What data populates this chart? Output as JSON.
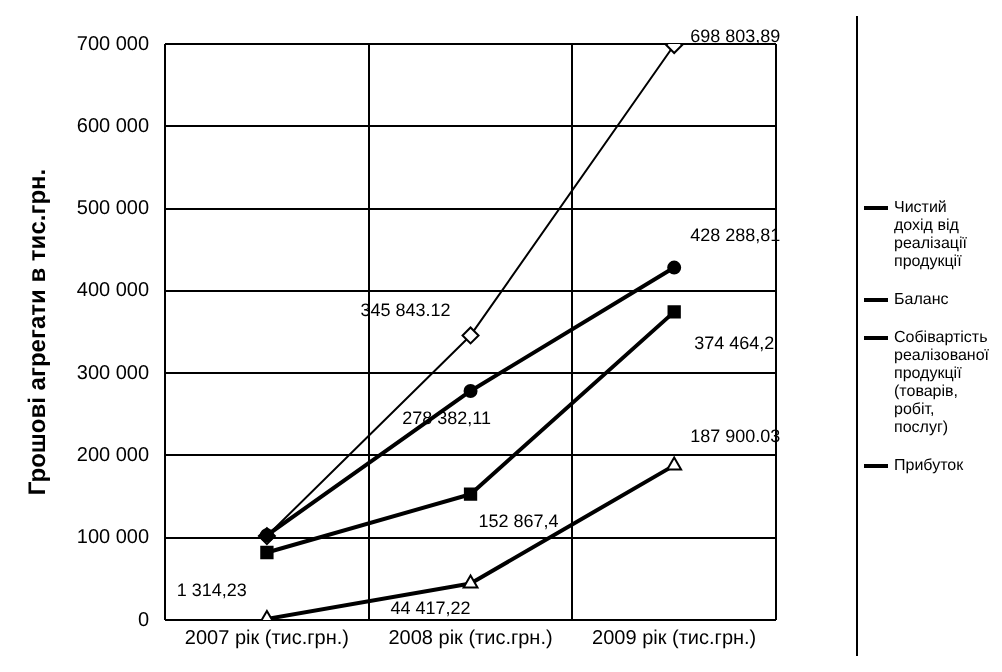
{
  "chart_data": {
    "type": "line",
    "ylabel": "Грошові агрегати в тис.грн.",
    "categories": [
      "2007 рік (тис.грн.)",
      "2008 рік (тис.грн.)",
      "2009 рік (тис.грн.)"
    ],
    "series": [
      {
        "name": "Чистий дохід від реалізації продукції",
        "color": "#000000",
        "marker": "diamond",
        "values": [
          102000,
          345843.12,
          698803.89
        ],
        "value_labels": [
          null,
          "345 843.12",
          "698 803,89"
        ]
      },
      {
        "name": "Баланс",
        "color": "#000000",
        "marker": "square",
        "values": [
          82000,
          152867.4,
          374464.2
        ],
        "value_labels": [
          null,
          "152 867,4",
          "374 464,2"
        ]
      },
      {
        "name": "Собівартість реалізованої продукції (товарів, робіт, послуг)",
        "color": "#000000",
        "marker": "circle",
        "values": [
          103000,
          278382.11,
          428288.81
        ],
        "value_labels": [
          null,
          "278 382,11",
          "428 288,81"
        ]
      },
      {
        "name": "Прибуток",
        "color": "#000000",
        "marker": "triangle",
        "values": [
          1314.23,
          44417.22,
          187900.03
        ],
        "value_labels": [
          "1 314,23",
          "44 417,22",
          "187 900.03"
        ]
      }
    ],
    "ylim": [
      0,
      700000
    ],
    "yticks": [
      {
        "value": 0,
        "label": "0"
      },
      {
        "value": 100000,
        "label": "100 000"
      },
      {
        "value": 200000,
        "label": "200 000"
      },
      {
        "value": 300000,
        "label": "300 000"
      },
      {
        "value": 400000,
        "label": "400 000"
      },
      {
        "value": 500000,
        "label": "500 000"
      },
      {
        "value": 600000,
        "label": "600 000"
      },
      {
        "value": 700000,
        "label": "700 000"
      }
    ],
    "grid": true,
    "legend": "right"
  }
}
